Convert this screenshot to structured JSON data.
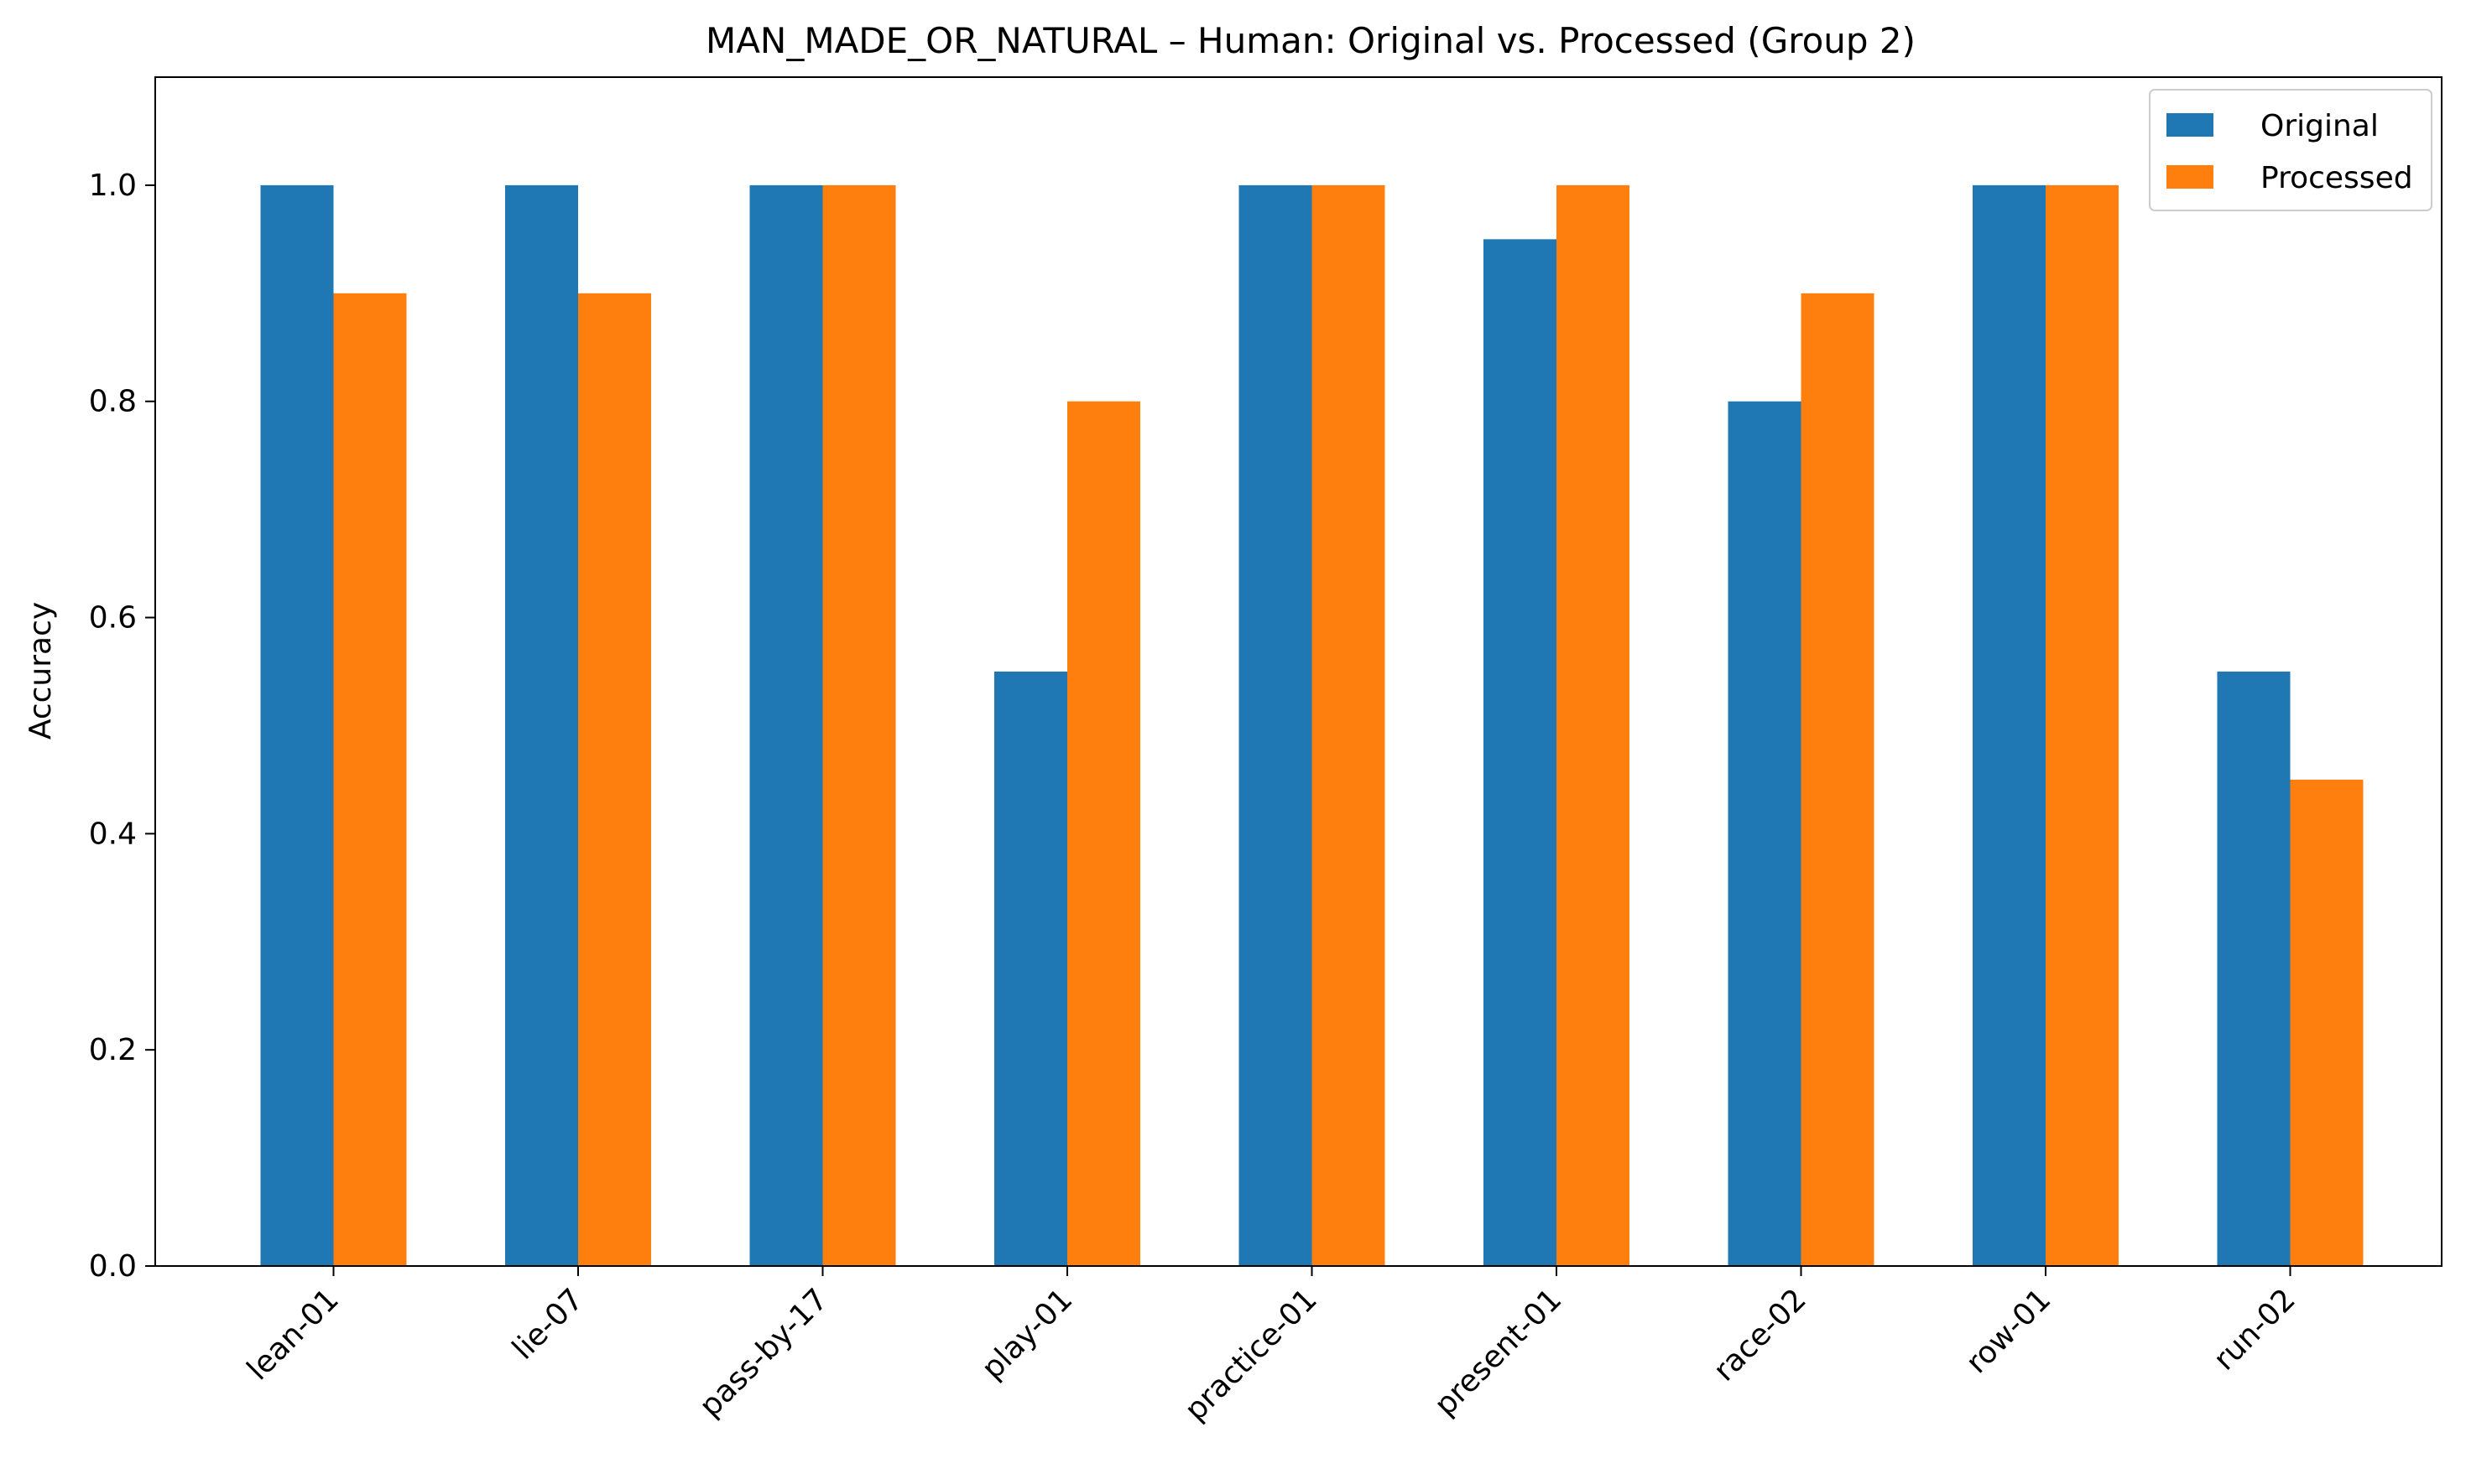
{
  "chart_data": {
    "type": "bar",
    "title": "MAN_MADE_OR_NATURAL – Human: Original vs. Processed (Group 2)",
    "xlabel": "",
    "ylabel": "Accuracy",
    "ylim": [
      0,
      1.1
    ],
    "yticks": [
      "0.0",
      "0.2",
      "0.4",
      "0.6",
      "0.8",
      "1.0"
    ],
    "categories": [
      "lean-01",
      "lie-07",
      "pass-by-17",
      "play-01",
      "practice-01",
      "present-01",
      "race-02",
      "row-01",
      "run-02"
    ],
    "series": [
      {
        "name": "Original",
        "color": "#1f77b4",
        "values": [
          1.0,
          1.0,
          1.0,
          0.55,
          1.0,
          0.95,
          0.8,
          1.0,
          0.55
        ]
      },
      {
        "name": "Processed",
        "color": "#ff7f0e",
        "values": [
          0.9,
          0.9,
          1.0,
          0.8,
          1.0,
          1.0,
          0.9,
          1.0,
          0.45
        ]
      }
    ],
    "grid": false,
    "legend": "top-right"
  }
}
